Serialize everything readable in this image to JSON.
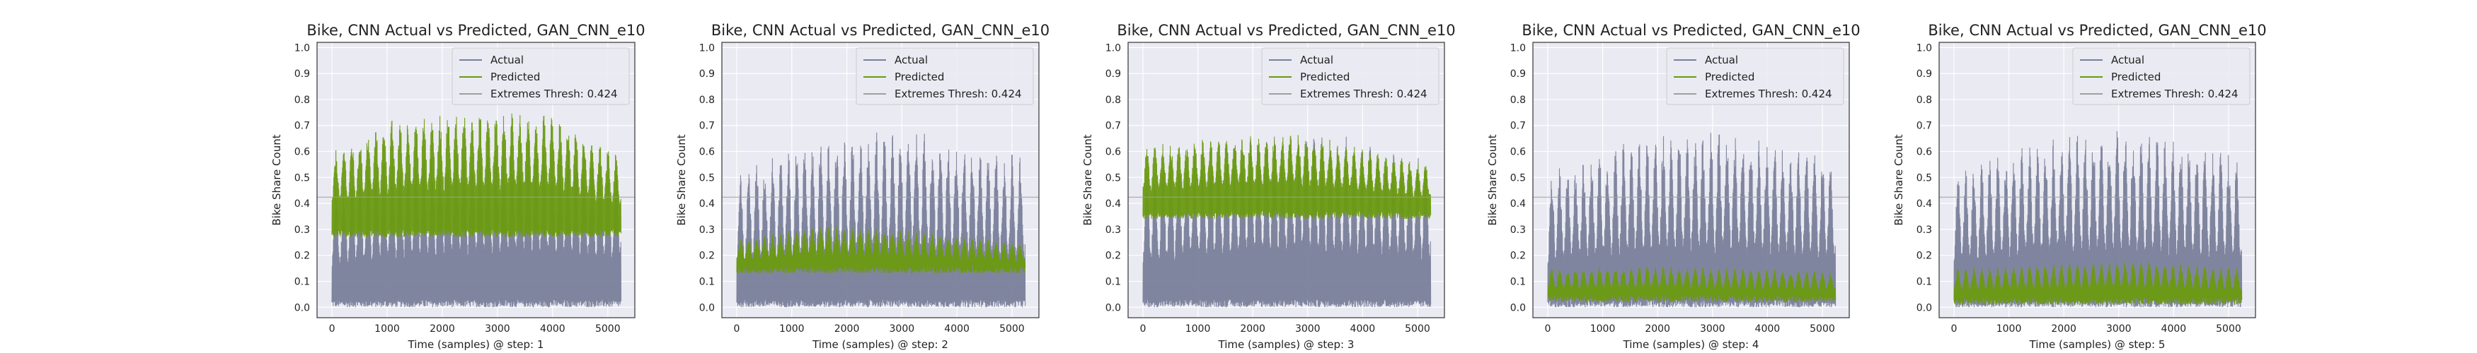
{
  "colors": {
    "plot_bg": "#eaeaf2",
    "grid": "#ffffff",
    "actual": "#7a7f9a",
    "predicted": "#6a9a10",
    "thresh_line": "#a0a0a0",
    "legend_bg": "#eaeaf2",
    "legend_border": "#cccccc",
    "axis_frame": "#333333"
  },
  "chart_data": [
    {
      "type": "line",
      "title": "Bike, CNN Actual vs Predicted, GAN_CNN_e10",
      "xlabel": "Time (samples) @ step: 1",
      "ylabel": "Bike Share Count",
      "xlim": [
        -270,
        5490
      ],
      "ylim": [
        -0.04,
        1.02
      ],
      "xticks": [
        0,
        1000,
        2000,
        3000,
        4000,
        5000
      ],
      "xtick_labels": [
        "0",
        "1000",
        "2000",
        "3000",
        "4000",
        "5000"
      ],
      "yticks": [
        0.0,
        0.1,
        0.2,
        0.3,
        0.4,
        0.5,
        0.6,
        0.7,
        0.8,
        0.9,
        1.0
      ],
      "ytick_labels": [
        "0.0",
        "0.1",
        "0.2",
        "0.3",
        "0.4",
        "0.5",
        "0.6",
        "0.7",
        "0.8",
        "0.9",
        "1.0"
      ],
      "grid": true,
      "legend": {
        "placement": "top-right",
        "entries": [
          "Actual",
          "Predicted",
          "Extremes Thresh: 0.424"
        ]
      },
      "threshold": 0.424,
      "series": [
        {
          "name": "Actual",
          "x_range": [
            0,
            5240
          ],
          "low": 0.0,
          "peak_envelope": [
            [
              0,
              0.44
            ],
            [
              1000,
              0.55
            ],
            [
              2000,
              0.6
            ],
            [
              3000,
              0.62
            ],
            [
              4000,
              0.6
            ],
            [
              5240,
              0.55
            ]
          ]
        },
        {
          "name": "Predicted",
          "x_range": [
            0,
            5240
          ],
          "band_low": 0.27,
          "band_high_envelope": [
            [
              0,
              0.6
            ],
            [
              1000,
              0.72
            ],
            [
              2500,
              0.76
            ],
            [
              4000,
              0.74
            ],
            [
              5240,
              0.58
            ]
          ]
        }
      ]
    },
    {
      "type": "line",
      "title": "Bike, CNN Actual vs Predicted, GAN_CNN_e10",
      "xlabel": "Time (samples) @ step: 2",
      "ylabel": "Bike Share Count",
      "xlim": [
        -270,
        5490
      ],
      "ylim": [
        -0.04,
        1.02
      ],
      "xticks": [
        0,
        1000,
        2000,
        3000,
        4000,
        5000
      ],
      "xtick_labels": [
        "0",
        "1000",
        "2000",
        "3000",
        "4000",
        "5000"
      ],
      "yticks": [
        0.0,
        0.1,
        0.2,
        0.3,
        0.4,
        0.5,
        0.6,
        0.7,
        0.8,
        0.9,
        1.0
      ],
      "ytick_labels": [
        "0.0",
        "0.1",
        "0.2",
        "0.3",
        "0.4",
        "0.5",
        "0.6",
        "0.7",
        "0.8",
        "0.9",
        "1.0"
      ],
      "grid": true,
      "legend": {
        "placement": "top-right",
        "entries": [
          "Actual",
          "Predicted",
          "Extremes Thresh: 0.424"
        ]
      },
      "threshold": 0.424,
      "series": [
        {
          "name": "Actual",
          "x_range": [
            0,
            5240
          ],
          "low": 0.0,
          "peak_envelope": [
            [
              0,
              0.5
            ],
            [
              1000,
              0.58
            ],
            [
              2000,
              0.63
            ],
            [
              3000,
              0.66
            ],
            [
              4000,
              0.62
            ],
            [
              5240,
              0.55
            ]
          ]
        },
        {
          "name": "Predicted",
          "x_range": [
            0,
            5240
          ],
          "band_low": 0.13,
          "band_high_envelope": [
            [
              0,
              0.26
            ],
            [
              1500,
              0.32
            ],
            [
              3000,
              0.3
            ],
            [
              5240,
              0.25
            ]
          ]
        }
      ]
    },
    {
      "type": "line",
      "title": "Bike, CNN Actual vs Predicted, GAN_CNN_e10",
      "xlabel": "Time (samples) @ step: 3",
      "ylabel": "Bike Share Count",
      "xlim": [
        -270,
        5490
      ],
      "ylim": [
        -0.04,
        1.02
      ],
      "xticks": [
        0,
        1000,
        2000,
        3000,
        4000,
        5000
      ],
      "xtick_labels": [
        "0",
        "1000",
        "2000",
        "3000",
        "4000",
        "5000"
      ],
      "yticks": [
        0.0,
        0.1,
        0.2,
        0.3,
        0.4,
        0.5,
        0.6,
        0.7,
        0.8,
        0.9,
        1.0
      ],
      "ytick_labels": [
        "0.0",
        "0.1",
        "0.2",
        "0.3",
        "0.4",
        "0.5",
        "0.6",
        "0.7",
        "0.8",
        "0.9",
        "1.0"
      ],
      "grid": true,
      "legend": {
        "placement": "top-right",
        "entries": [
          "Actual",
          "Predicted",
          "Extremes Thresh: 0.424"
        ]
      },
      "threshold": 0.424,
      "series": [
        {
          "name": "Actual",
          "x_range": [
            0,
            5240
          ],
          "low": 0.0,
          "peak_envelope": [
            [
              0,
              0.5
            ],
            [
              1000,
              0.58
            ],
            [
              2000,
              0.63
            ],
            [
              3000,
              0.66
            ],
            [
              4000,
              0.62
            ],
            [
              5240,
              0.55
            ]
          ]
        },
        {
          "name": "Predicted",
          "x_range": [
            0,
            5240
          ],
          "band_low": 0.34,
          "band_high_envelope": [
            [
              0,
              0.62
            ],
            [
              1500,
              0.66
            ],
            [
              3000,
              0.67
            ],
            [
              5240,
              0.55
            ]
          ]
        }
      ]
    },
    {
      "type": "line",
      "title": "Bike, CNN Actual vs Predicted, GAN_CNN_e10",
      "xlabel": "Time (samples) @ step: 4",
      "ylabel": "Bike Share Count",
      "xlim": [
        -270,
        5490
      ],
      "ylim": [
        -0.04,
        1.02
      ],
      "xticks": [
        0,
        1000,
        2000,
        3000,
        4000,
        5000
      ],
      "xtick_labels": [
        "0",
        "1000",
        "2000",
        "3000",
        "4000",
        "5000"
      ],
      "yticks": [
        0.0,
        0.1,
        0.2,
        0.3,
        0.4,
        0.5,
        0.6,
        0.7,
        0.8,
        0.9,
        1.0
      ],
      "ytick_labels": [
        "0.0",
        "0.1",
        "0.2",
        "0.3",
        "0.4",
        "0.5",
        "0.6",
        "0.7",
        "0.8",
        "0.9",
        "1.0"
      ],
      "grid": true,
      "legend": {
        "placement": "top-right",
        "entries": [
          "Actual",
          "Predicted",
          "Extremes Thresh: 0.424"
        ]
      },
      "threshold": 0.424,
      "series": [
        {
          "name": "Actual",
          "x_range": [
            0,
            5240
          ],
          "low": 0.0,
          "peak_envelope": [
            [
              0,
              0.5
            ],
            [
              1000,
              0.58
            ],
            [
              2000,
              0.64
            ],
            [
              3000,
              0.66
            ],
            [
              4000,
              0.62
            ],
            [
              5240,
              0.55
            ]
          ]
        },
        {
          "name": "Predicted",
          "x_range": [
            0,
            5240
          ],
          "band_low": 0.02,
          "band_high_envelope": [
            [
              0,
              0.15
            ],
            [
              2000,
              0.16
            ],
            [
              5240,
              0.14
            ]
          ]
        }
      ]
    },
    {
      "type": "line",
      "title": "Bike, CNN Actual vs Predicted, GAN_CNN_e10",
      "xlabel": "Time (samples) @ step: 5",
      "ylabel": "Bike Share Count",
      "xlim": [
        -270,
        5490
      ],
      "ylim": [
        -0.04,
        1.02
      ],
      "xticks": [
        0,
        1000,
        2000,
        3000,
        4000,
        5000
      ],
      "xtick_labels": [
        "0",
        "1000",
        "2000",
        "3000",
        "4000",
        "5000"
      ],
      "yticks": [
        0.0,
        0.1,
        0.2,
        0.3,
        0.4,
        0.5,
        0.6,
        0.7,
        0.8,
        0.9,
        1.0
      ],
      "ytick_labels": [
        "0.0",
        "0.1",
        "0.2",
        "0.3",
        "0.4",
        "0.5",
        "0.6",
        "0.7",
        "0.8",
        "0.9",
        "1.0"
      ],
      "grid": true,
      "legend": {
        "placement": "top-right",
        "entries": [
          "Actual",
          "Predicted",
          "Extremes Thresh: 0.424"
        ]
      },
      "threshold": 0.424,
      "series": [
        {
          "name": "Actual",
          "x_range": [
            0,
            5240
          ],
          "low": 0.0,
          "peak_envelope": [
            [
              0,
              0.5
            ],
            [
              1000,
              0.58
            ],
            [
              2000,
              0.64
            ],
            [
              3000,
              0.66
            ],
            [
              4000,
              0.62
            ],
            [
              5240,
              0.55
            ]
          ]
        },
        {
          "name": "Predicted",
          "x_range": [
            0,
            5240
          ],
          "band_low": 0.01,
          "band_high_envelope": [
            [
              0,
              0.15
            ],
            [
              2000,
              0.17
            ],
            [
              3500,
              0.18
            ],
            [
              5240,
              0.15
            ]
          ]
        }
      ]
    }
  ]
}
